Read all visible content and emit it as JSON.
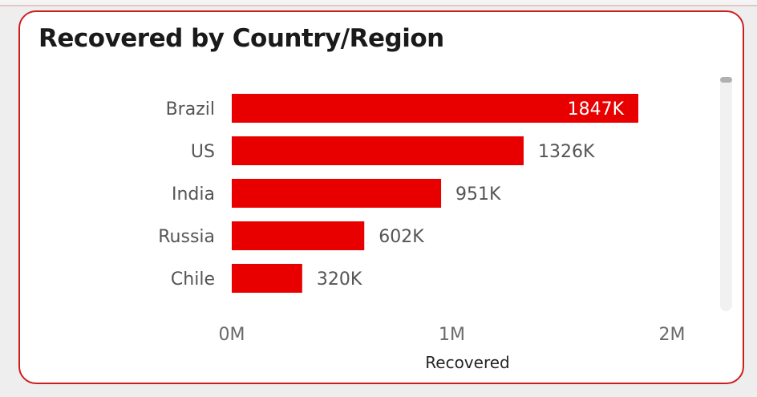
{
  "chart_data": {
    "type": "bar",
    "orientation": "horizontal",
    "title": "Recovered by Country/Region",
    "xlabel": "Recovered",
    "ylabel": "",
    "categories": [
      "Brazil",
      "US",
      "India",
      "Russia",
      "Chile"
    ],
    "values": [
      1847000,
      1326000,
      951000,
      602000,
      320000
    ],
    "data_labels": [
      "1847K",
      "1326K",
      "951K",
      "602K",
      "320K"
    ],
    "x_ticks": [
      0,
      1000000,
      2000000
    ],
    "x_tick_labels": [
      "0M",
      "1M",
      "2M"
    ],
    "xlim": [
      0,
      2000000
    ],
    "grid": false,
    "legend": "none",
    "bar_color": "#e80000"
  }
}
